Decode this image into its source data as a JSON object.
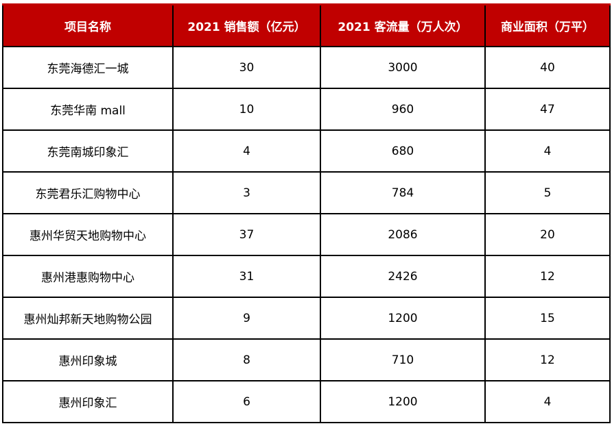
{
  "table": {
    "header_color": "#C00000",
    "columns": [
      "项目名称",
      "2021 销售额（亿元）",
      "2021 客流量（万人次）",
      "商业面积（万平）"
    ],
    "rows": [
      [
        "东莞海德汇一城",
        "30",
        "3000",
        "40"
      ],
      [
        "东莞华南 mall",
        "10",
        "960",
        "47"
      ],
      [
        "东莞南城印象汇",
        "4",
        "680",
        "4"
      ],
      [
        "东莞君乐汇购物中心",
        "3",
        "784",
        "5"
      ],
      [
        "惠州华贸天地购物中心",
        "37",
        "2086",
        "20"
      ],
      [
        "惠州港惠购物中心",
        "31",
        "2426",
        "12"
      ],
      [
        "惠州灿邦新天地购物公园",
        "9",
        "1200",
        "15"
      ],
      [
        "惠州印象城",
        "8",
        "710",
        "12"
      ],
      [
        "惠州印象汇",
        "6",
        "1200",
        "4"
      ]
    ]
  }
}
